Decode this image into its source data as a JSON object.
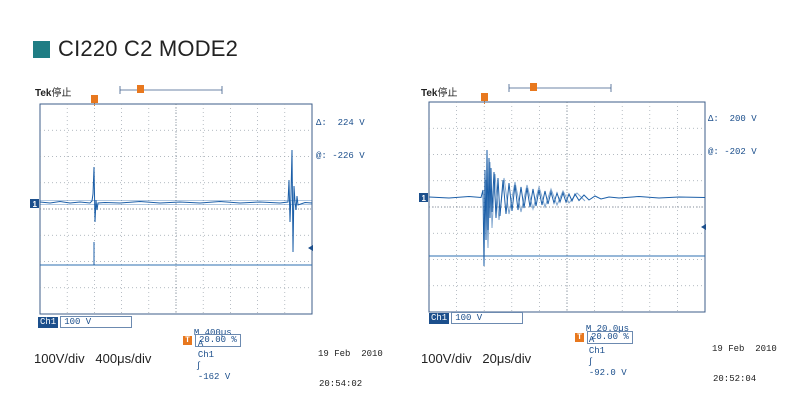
{
  "header": {
    "title": "CI220 C2 MODE2"
  },
  "left_scope": {
    "brand": "Tek",
    "status": "停止",
    "trigger_marker": "T",
    "delta_label": "Δ:",
    "delta_value": "224 V",
    "at_label": "@:",
    "at_value": "-226 V",
    "ch_marker": "1",
    "ch_tag": "Ch1",
    "ch_scale": "100 V",
    "timebase": "M 400µs",
    "trigger_mode": "A",
    "trigger_src": "Ch1",
    "trigger_slope": "∫",
    "trigger_level": "-162 V",
    "trigger_pos": "20.00 %",
    "date": "19 Feb  2010",
    "time": "20:54:02",
    "caption": "100V/div   400μs/div"
  },
  "right_scope": {
    "brand": "Tek",
    "status": "停止",
    "trigger_marker": "T",
    "delta_label": "Δ:",
    "delta_value": "200 V",
    "at_label": "@:",
    "at_value": "-202 V",
    "ch_marker": "1",
    "ch_tag": "Ch1",
    "ch_scale": "100 V",
    "timebase": "M 20.0µs",
    "trigger_mode": "A",
    "trigger_src": "Ch1",
    "trigger_slope": "∫",
    "trigger_level": "-92.0 V",
    "trigger_pos": "20.00 %",
    "date": "19 Feb  2010",
    "time": "20:52:04",
    "caption": "100V/div   20μs/div"
  },
  "colors": {
    "accent": "#1f7d84",
    "trace": "#1c5fa8",
    "trigger": "#e8781e"
  }
}
